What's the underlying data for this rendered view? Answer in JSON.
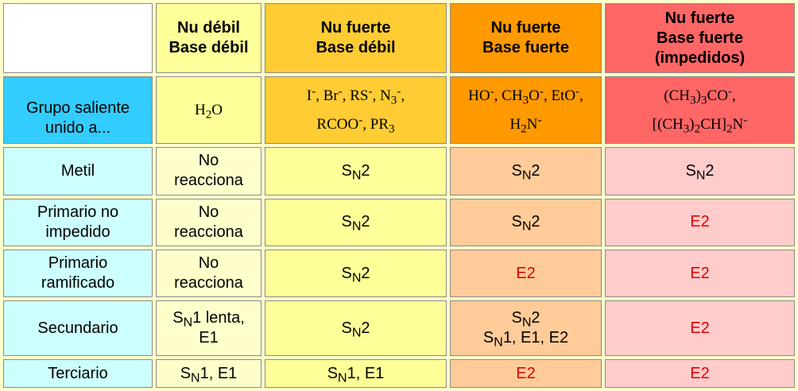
{
  "header": {
    "col1": [
      "Nu débil",
      "Base débil"
    ],
    "col2": [
      "Nu fuerte",
      "Base débil"
    ],
    "col3": [
      "Nu fuerte",
      "Base fuerte"
    ],
    "col4": [
      "Nu fuerte",
      "Base fuerte",
      "(impedidos)"
    ]
  },
  "leaving_group_row": {
    "label": "Grupo saliente unido a...",
    "col1": "H2O",
    "col2": "I-, Br-, RS-, N3-, RCOO-, PR3",
    "col3": "HO-, CH3O-, EtO-, H2N-",
    "col4": "(CH3)3CO-, [(CH3)2CH]2N-"
  },
  "rows": [
    {
      "label": "Metil",
      "col1": "No reacciona",
      "col2": "SN2",
      "col3": "SN2",
      "col4": "SN2"
    },
    {
      "label": "Primario no impedido",
      "col1": "No reacciona",
      "col2": "SN2",
      "col3": "SN2",
      "col4": "E2"
    },
    {
      "label": "Primario ramificado",
      "col1": "No reacciona",
      "col2": "SN2",
      "col3": "E2",
      "col4": "E2"
    },
    {
      "label": "Secundario",
      "col1": "SN1 lenta, E1",
      "col2": "SN2",
      "col3": "SN2 SN1, E1, E2",
      "col4": "E2"
    },
    {
      "label": "Terciario",
      "col1": "SN1, E1",
      "col2": "SN1, E1",
      "col3": "E2",
      "col4": "E2"
    }
  ],
  "colors": {
    "background": "#ffffcc",
    "col1_header": "#ffff99",
    "col2_header": "#ffcc33",
    "col3_header": "#ff9900",
    "col4_header": "#ff6666",
    "row_label": "#ccffff",
    "leaving_group_label": "#33ccff",
    "elimination_text": "#dd0000"
  }
}
